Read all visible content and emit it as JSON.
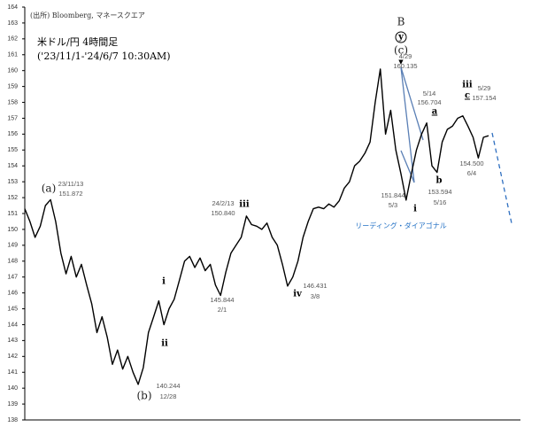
{
  "chart_data": {
    "type": "line",
    "source": "(出所) Bloomberg, マネースクエア",
    "title": "米ドル/円 4時間足",
    "subtitle": "('23/11/1-'24/6/7 10:30AM)",
    "color": "#000000",
    "ylim": [
      138,
      164
    ],
    "yticks": [
      138,
      139,
      140,
      141,
      142,
      143,
      144,
      145,
      146,
      147,
      148,
      149,
      150,
      151,
      152,
      153,
      154,
      155,
      156,
      157,
      158,
      159,
      160,
      161,
      162,
      163,
      164
    ],
    "values": [
      151.3,
      150.5,
      149.5,
      150.2,
      151.5,
      151.87,
      150.5,
      148.5,
      147.2,
      148.3,
      147.0,
      147.8,
      146.5,
      145.3,
      143.5,
      144.5,
      143.2,
      141.5,
      142.4,
      141.2,
      142.0,
      141.0,
      140.24,
      141.3,
      143.5,
      144.5,
      145.5,
      144.0,
      145.0,
      145.6,
      146.8,
      148.0,
      148.3,
      147.6,
      148.2,
      147.4,
      147.8,
      146.5,
      145.84,
      147.3,
      148.5,
      149.0,
      149.5,
      150.84,
      150.3,
      150.2,
      150.0,
      150.4,
      149.5,
      149.0,
      147.8,
      146.43,
      147.0,
      148.0,
      149.5,
      150.5,
      151.3,
      151.4,
      151.3,
      151.6,
      151.4,
      151.8,
      152.6,
      153.0,
      154.0,
      154.3,
      154.8,
      155.5,
      158.0,
      160.1,
      156.0,
      157.5,
      155.0,
      153.5,
      151.84,
      153.5,
      155.0,
      156.0,
      156.7,
      154.0,
      153.59,
      155.5,
      156.3,
      156.5,
      157.0,
      157.15,
      156.5,
      155.8,
      154.5,
      155.8,
      155.9
    ],
    "annotations": [
      "B",
      "y",
      "(c)",
      "4/29",
      "160.135",
      "5/14",
      "156.704",
      "a",
      "ⅲ",
      "c",
      "5/29",
      "157.154",
      "(a)",
      "23/11/13",
      "151.872",
      "24/2/13",
      "150.840",
      "ⅲ",
      "151.844",
      "5/3",
      "i",
      "b",
      "153.594",
      "5/16",
      "154.500",
      "6/4",
      "リーディング・ダイアゴナル",
      "i",
      "ⅱ",
      "145.844",
      "2/1",
      "ⅳ",
      "146.431",
      "3/8",
      "(b)",
      "140.244",
      "12/28"
    ]
  }
}
